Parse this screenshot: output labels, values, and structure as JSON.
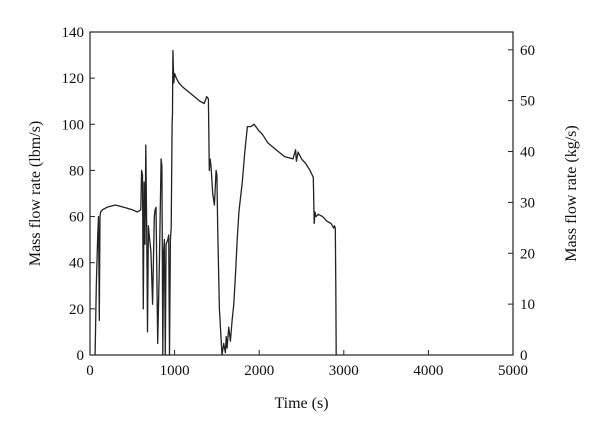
{
  "chart_data": {
    "type": "line",
    "title": "",
    "xlabel": "Time (s)",
    "ylabel": "Mass flow rate (lbm/s)",
    "y2label": "Mass flow rate (kg/s)",
    "xlim": [
      0,
      5000
    ],
    "ylim": [
      0,
      140
    ],
    "y2lim": [
      0,
      63.5
    ],
    "xticks": [
      0,
      1000,
      2000,
      3000,
      4000,
      5000
    ],
    "yticks": [
      0,
      20,
      40,
      60,
      80,
      100,
      120,
      140
    ],
    "y2ticks": [
      0,
      10,
      20,
      30,
      40,
      50,
      60
    ],
    "grid": false,
    "series": [
      {
        "color": "#222222",
        "x": [
          60,
          75,
          90,
          100,
          105,
          110,
          118,
          125,
          150,
          200,
          300,
          400,
          500,
          560,
          600,
          610,
          620,
          630,
          640,
          650,
          660,
          670,
          680,
          690,
          700,
          720,
          740,
          760,
          770,
          780,
          800,
          820,
          840,
          850,
          860,
          870,
          880,
          890,
          900,
          920,
          930,
          940,
          950,
          960,
          965,
          970,
          975,
          980,
          990,
          1000,
          1010,
          1020,
          1050,
          1100,
          1200,
          1300,
          1350,
          1380,
          1400,
          1410,
          1420,
          1430,
          1450,
          1470,
          1490,
          1500,
          1510,
          1530,
          1560,
          1580,
          1600,
          1610,
          1620,
          1640,
          1660,
          1680,
          1700,
          1720,
          1740,
          1760,
          1800,
          1830,
          1860,
          1900,
          1940,
          1980,
          2000,
          2030,
          2050,
          2100,
          2200,
          2300,
          2400,
          2430,
          2440,
          2460,
          2500,
          2550,
          2600,
          2640,
          2650,
          2660,
          2670,
          2700,
          2750,
          2800,
          2850,
          2880,
          2890,
          2900,
          2905,
          2910
        ],
        "y": [
          0,
          30,
          50,
          60,
          40,
          15,
          60,
          62,
          63,
          64,
          65,
          64,
          63,
          62,
          63,
          80,
          78,
          20,
          75,
          48,
          91,
          55,
          10,
          56,
          52,
          45,
          22,
          60,
          63,
          64,
          5,
          40,
          85,
          82,
          0,
          45,
          50,
          0,
          48,
          50,
          52,
          0,
          50,
          55,
          75,
          100,
          105,
          132,
          118,
          122,
          121,
          120,
          118,
          116,
          113,
          110,
          109,
          112,
          111,
          80,
          85,
          82,
          70,
          65,
          80,
          78,
          55,
          20,
          0,
          5,
          1,
          8,
          3,
          12,
          6,
          15,
          22,
          35,
          50,
          62,
          75,
          88,
          99,
          99,
          100,
          98,
          97,
          96,
          95,
          92,
          89,
          86,
          85,
          89,
          84,
          88,
          85,
          83,
          80,
          77,
          57,
          62,
          60,
          61,
          60,
          58,
          57,
          55,
          56,
          55,
          30,
          0
        ]
      }
    ]
  }
}
